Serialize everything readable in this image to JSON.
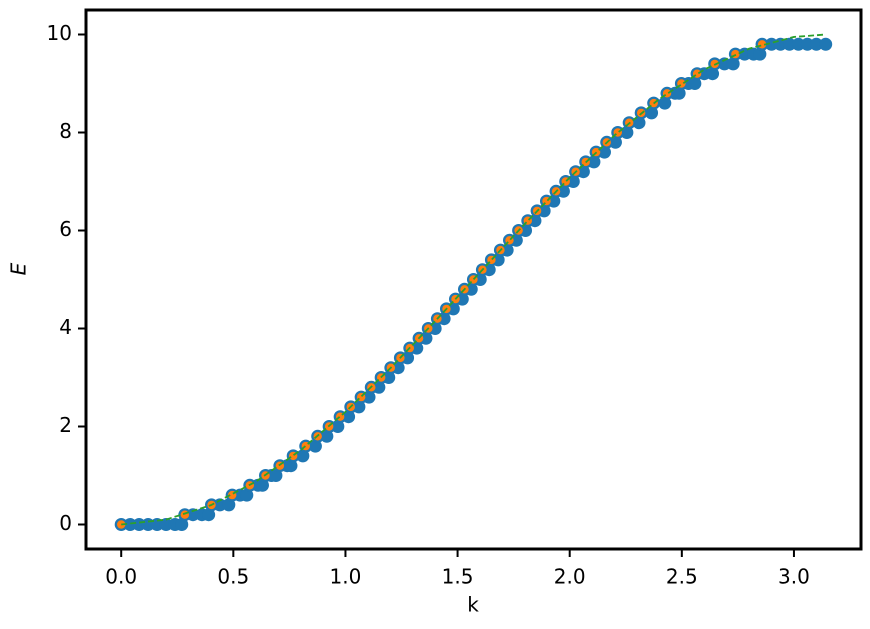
{
  "chart_data": {
    "type": "scatter",
    "xlabel": "k",
    "ylabel": "E",
    "xlim": [
      -0.157,
      3.299
    ],
    "ylim": [
      -0.5,
      10.5
    ],
    "xticks": [
      {
        "value": 0,
        "label": "0.0"
      },
      {
        "value": 0.5,
        "label": "0.5"
      },
      {
        "value": 1,
        "label": "1.0"
      },
      {
        "value": 1.5,
        "label": "1.5"
      },
      {
        "value": 2,
        "label": "2.0"
      },
      {
        "value": 2.5,
        "label": "2.5"
      },
      {
        "value": 3,
        "label": "3.0"
      }
    ],
    "yticks": [
      0,
      2,
      4,
      6,
      8,
      10
    ],
    "series": [
      {
        "mode": "markers",
        "color": "#1f77b4",
        "x": [
          0,
          0.04,
          0.08,
          0.12,
          0.16,
          0.2,
          0.24,
          0.27,
          0.2838,
          0.32,
          0.36,
          0.39,
          0.4027,
          0.44,
          0.48,
          0.4949,
          0.53,
          0.56,
          0.5735,
          0.61,
          0.63,
          0.6435,
          0.67,
          0.69,
          0.7076,
          0.74,
          0.757,
          0.767,
          0.81,
          0.823,
          0.866,
          0.8763,
          0.917,
          0.9273,
          0.966,
          0.9764,
          1.014,
          1.0239,
          1.06,
          1.0701,
          1.105,
          1.1152,
          1.149,
          1.1593,
          1.193,
          1.2025,
          1.235,
          1.2451,
          1.277,
          1.287,
          1.318,
          1.3284,
          1.359,
          1.3694,
          1.4,
          1.4101,
          1.44,
          1.4505,
          1.481,
          1.4907,
          1.521,
          1.5308,
          1.561,
          1.5708,
          1.601,
          1.6108,
          1.641,
          1.6509,
          1.681,
          1.6911,
          1.721,
          1.7315,
          1.762,
          1.7722,
          1.803,
          1.8132,
          1.845,
          1.8546,
          1.886,
          1.8965,
          1.929,
          1.9391,
          1.972,
          1.9823,
          2.016,
          2.0264,
          2.061,
          2.0715,
          2.108,
          2.1177,
          2.155,
          2.1652,
          2.204,
          2.2143,
          2.255,
          2.2653,
          2.309,
          2.3186,
          2.365,
          2.3746,
          2.424,
          2.434,
          2.47,
          2.488,
          2.4981,
          2.53,
          2.558,
          2.5681,
          2.6,
          2.637,
          2.6467,
          2.69,
          2.729,
          2.7389,
          2.78,
          2.82,
          2.848,
          2.8578,
          2.9,
          2.94,
          2.98,
          3.02,
          3.06,
          3.1,
          3.1416
        ],
        "values": [
          0,
          0,
          0,
          0,
          0,
          0,
          0,
          0,
          0.2,
          0.2,
          0.2,
          0.2,
          0.4,
          0.4,
          0.4,
          0.6,
          0.6,
          0.6,
          0.8,
          0.8,
          0.8,
          1,
          1,
          1,
          1.2,
          1.2,
          1.2,
          1.4,
          1.4,
          1.6,
          1.6,
          1.8,
          1.8,
          2,
          2,
          2.2,
          2.2,
          2.4,
          2.4,
          2.6,
          2.6,
          2.8,
          2.8,
          3,
          3,
          3.2,
          3.2,
          3.4,
          3.4,
          3.6,
          3.6,
          3.8,
          3.8,
          4,
          4,
          4.2,
          4.2,
          4.4,
          4.4,
          4.6,
          4.6,
          4.8,
          4.8,
          5,
          5,
          5.2,
          5.2,
          5.4,
          5.4,
          5.6,
          5.6,
          5.8,
          5.8,
          6,
          6,
          6.2,
          6.2,
          6.4,
          6.4,
          6.6,
          6.6,
          6.8,
          6.8,
          7,
          7,
          7.2,
          7.2,
          7.4,
          7.4,
          7.6,
          7.6,
          7.8,
          7.8,
          8,
          8,
          8.2,
          8.2,
          8.4,
          8.4,
          8.6,
          8.6,
          8.8,
          8.8,
          8.8,
          9,
          9,
          9,
          9.2,
          9.2,
          9.2,
          9.4,
          9.4,
          9.4,
          9.6,
          9.6,
          9.6,
          9.6,
          9.8,
          9.8,
          9.8,
          9.8,
          9.8,
          9.8,
          9.8,
          9.8
        ]
      },
      {
        "mode": "markers",
        "color": "#ff7f0e",
        "x": [
          0,
          0.2838,
          0.4027,
          0.4949,
          0.5735,
          0.6435,
          0.7076,
          0.767,
          0.823,
          0.8763,
          0.9273,
          0.9764,
          1.0239,
          1.0701,
          1.1152,
          1.1593,
          1.2025,
          1.2451,
          1.287,
          1.3284,
          1.3694,
          1.4101,
          1.4505,
          1.4907,
          1.5308,
          1.5708,
          1.6108,
          1.6509,
          1.6911,
          1.7315,
          1.7722,
          1.8132,
          1.8546,
          1.8965,
          1.9391,
          1.9823,
          2.0264,
          2.0715,
          2.1177,
          2.1652,
          2.2143,
          2.2653,
          2.3186,
          2.3746,
          2.434,
          2.4981,
          2.5681,
          2.6467,
          2.7389,
          2.8578
        ],
        "values": [
          0,
          0.2,
          0.4,
          0.6,
          0.8,
          1,
          1.2,
          1.4,
          1.6,
          1.8,
          2,
          2.2,
          2.4,
          2.6,
          2.8,
          3,
          3.2,
          3.4,
          3.6,
          3.8,
          4,
          4.2,
          4.4,
          4.6,
          4.8,
          5,
          5.2,
          5.4,
          5.6,
          5.8,
          6,
          6.2,
          6.4,
          6.6,
          6.8,
          7,
          7.2,
          7.4,
          7.6,
          7.8,
          8,
          8.2,
          8.4,
          8.6,
          8.8,
          9,
          9.2,
          9.4,
          9.6,
          9.8
        ]
      },
      {
        "mode": "line",
        "linestyle": "dashed",
        "color": "#2ca02c",
        "x": [
          0,
          0.2,
          0.4,
          0.6,
          0.8,
          1,
          1.2,
          1.4,
          1.6,
          1.8,
          2,
          2.2,
          2.4,
          2.6,
          2.8,
          3,
          3.1416
        ],
        "values": [
          0,
          0.0997,
          0.3947,
          0.8733,
          1.5165,
          2.2985,
          3.1882,
          4.1502,
          5.146,
          6.136,
          7.0807,
          7.9425,
          8.687,
          9.2845,
          9.7111,
          9.95,
          10
        ]
      }
    ]
  }
}
